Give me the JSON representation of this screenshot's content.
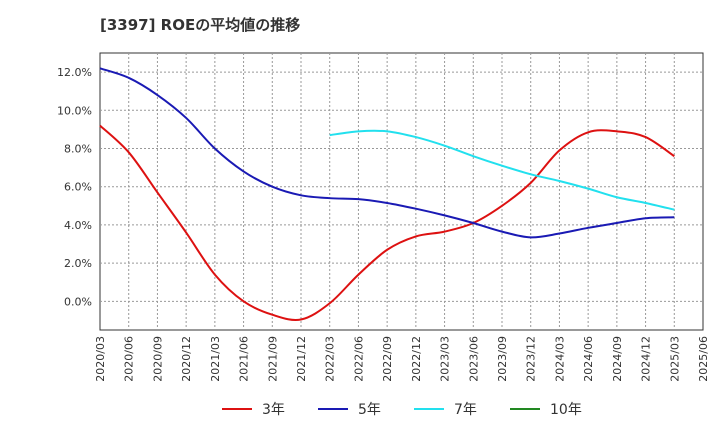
{
  "chart_data": {
    "type": "line",
    "title": "[3397]  ROEの平均値の推移",
    "y_ticks": [
      "12.0%",
      "10.0%",
      "8.0%",
      "6.0%",
      "4.0%",
      "2.0%",
      "0.0%"
    ],
    "y_tick_values": [
      12,
      10,
      8,
      6,
      4,
      2,
      0
    ],
    "ylim": [
      -1.5,
      13
    ],
    "x_ticks": [
      "2020/03",
      "2020/06",
      "2020/09",
      "2020/12",
      "2021/03",
      "2021/06",
      "2021/09",
      "2021/12",
      "2022/03",
      "2022/06",
      "2022/09",
      "2022/12",
      "2023/03",
      "2023/06",
      "2023/09",
      "2023/12",
      "2024/03",
      "2024/06",
      "2024/09",
      "2024/12",
      "2025/03",
      "2025/06"
    ],
    "grid": true,
    "legend_position": "bottom",
    "series": [
      {
        "name": "3年",
        "color": "#dd1111",
        "x": [
          "2020/03",
          "2020/06",
          "2020/09",
          "2020/12",
          "2021/03",
          "2021/06",
          "2021/09",
          "2021/12",
          "2022/03",
          "2022/06",
          "2022/09",
          "2022/12",
          "2023/03",
          "2023/06",
          "2023/09",
          "2023/12",
          "2024/03",
          "2024/06",
          "2024/09",
          "2024/12",
          "2025/03"
        ],
        "values": [
          9.2,
          7.8,
          5.7,
          3.6,
          1.4,
          0.0,
          -0.7,
          -0.95,
          -0.1,
          1.4,
          2.7,
          3.4,
          3.65,
          4.1,
          5.0,
          6.2,
          7.9,
          8.85,
          8.9,
          8.6,
          7.6
        ]
      },
      {
        "name": "5年",
        "color": "#1a1ab4",
        "x": [
          "2020/03",
          "2020/06",
          "2020/09",
          "2020/12",
          "2021/03",
          "2021/06",
          "2021/09",
          "2021/12",
          "2022/03",
          "2022/06",
          "2022/09",
          "2022/12",
          "2023/03",
          "2023/06",
          "2023/09",
          "2023/12",
          "2024/03",
          "2024/06",
          "2024/09",
          "2024/12",
          "2025/03"
        ],
        "values": [
          12.2,
          11.7,
          10.8,
          9.6,
          8.0,
          6.8,
          6.0,
          5.55,
          5.4,
          5.35,
          5.15,
          4.85,
          4.5,
          4.1,
          3.65,
          3.35,
          3.55,
          3.85,
          4.1,
          4.35,
          4.4
        ]
      },
      {
        "name": "7年",
        "color": "#22e0ee",
        "x": [
          "2022/03",
          "2022/06",
          "2022/09",
          "2022/12",
          "2023/03",
          "2023/06",
          "2023/09",
          "2023/12",
          "2024/03",
          "2024/06",
          "2024/09",
          "2024/12",
          "2025/03"
        ],
        "values": [
          8.7,
          8.9,
          8.9,
          8.6,
          8.15,
          7.6,
          7.1,
          6.65,
          6.3,
          5.9,
          5.45,
          5.15,
          4.8
        ]
      },
      {
        "name": "10年",
        "color": "#228822",
        "x": [],
        "values": []
      }
    ]
  }
}
